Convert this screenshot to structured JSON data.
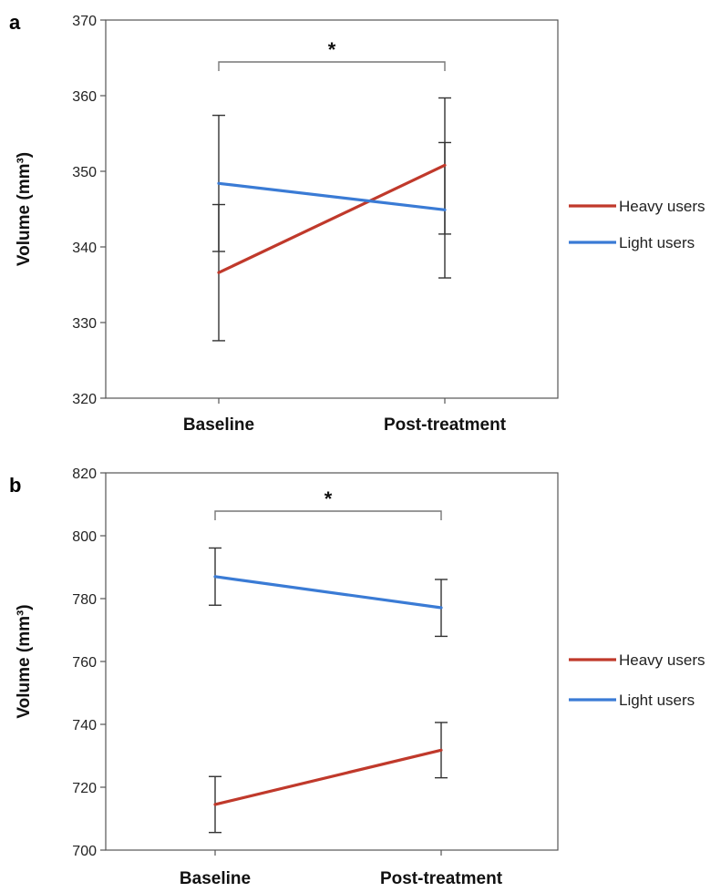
{
  "chart_data": [
    {
      "panel": "a",
      "type": "line",
      "categories": [
        "Baseline",
        "Post-treatment"
      ],
      "ylabel": "Volume (mm³)",
      "ylim": [
        320,
        370
      ],
      "yticks": [
        320,
        330,
        340,
        350,
        360,
        370
      ],
      "series": [
        {
          "name": "Heavy users",
          "color": "#c0392b",
          "values": [
            336.6,
            350.8
          ],
          "err_low": [
            327.6,
            341.7
          ],
          "err_high": [
            345.6,
            359.7
          ]
        },
        {
          "name": "Light users",
          "color": "#3a7bd5",
          "values": [
            348.4,
            344.9
          ],
          "err_low": [
            339.4,
            335.9
          ],
          "err_high": [
            357.4,
            353.8
          ]
        }
      ],
      "annotation": "*",
      "grid": false,
      "legend": "right"
    },
    {
      "panel": "b",
      "type": "line",
      "categories": [
        "Baseline",
        "Post-treatment"
      ],
      "ylabel": "Volume (mm³)",
      "ylim": [
        700,
        820
      ],
      "yticks": [
        700,
        720,
        740,
        760,
        780,
        800,
        820
      ],
      "series": [
        {
          "name": "Heavy users",
          "color": "#c0392b",
          "values": [
            714.5,
            731.8
          ],
          "err_low": [
            705.6,
            723
          ],
          "err_high": [
            723.4,
            740.6
          ]
        },
        {
          "name": "Light users",
          "color": "#3a7bd5",
          "values": [
            787,
            777.1
          ],
          "err_low": [
            777.9,
            768
          ],
          "err_high": [
            796.1,
            786.1
          ]
        }
      ],
      "annotation": "*",
      "grid": false,
      "legend": "right"
    }
  ]
}
